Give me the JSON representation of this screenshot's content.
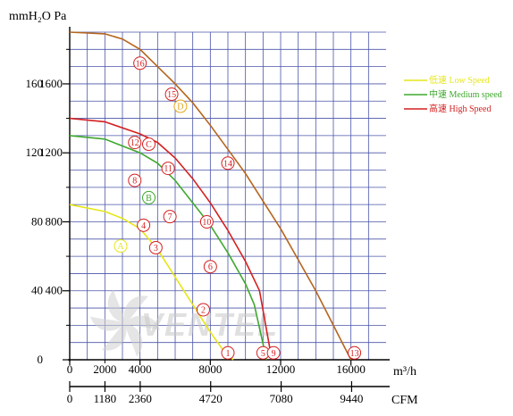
{
  "chart_data": {
    "type": "line",
    "title": "",
    "y_units_label": "mmH₂O  Pa",
    "x_units_label": "m³/h",
    "x2_units_label": "CFM",
    "ylim_mmH2O": [
      0,
      190
    ],
    "xlim_m3h": [
      0,
      18000
    ],
    "grid": true,
    "legend_position": "right",
    "y_ticks": [
      {
        "mmH2O": 0,
        "label_mm": "0",
        "label_pa": ""
      },
      {
        "mmH2O": 40,
        "label_mm": "40",
        "label_pa": "400"
      },
      {
        "mmH2O": 80,
        "label_mm": "80",
        "label_pa": "800"
      },
      {
        "mmH2O": 120,
        "label_mm": "120",
        "label_pa": "1200"
      },
      {
        "mmH2O": 160,
        "label_mm": "160",
        "label_pa": "1600"
      }
    ],
    "x_ticks": [
      {
        "m3h": 0,
        "label": "0"
      },
      {
        "m3h": 4000,
        "label": "4000"
      },
      {
        "m3h": 8000,
        "label": "8000"
      },
      {
        "m3h": 12000,
        "label": "12000"
      },
      {
        "m3h": 16000,
        "label": "16000"
      }
    ],
    "x_minor_labels": [
      {
        "m3h": 2000,
        "label": "2000"
      }
    ],
    "x2_ticks": [
      {
        "m3h": 0,
        "label": "0"
      },
      {
        "m3h": 2005,
        "label": "1180"
      },
      {
        "m3h": 4010,
        "label": "2360"
      },
      {
        "m3h": 8020,
        "label": "4720"
      },
      {
        "m3h": 12029,
        "label": "7080"
      },
      {
        "m3h": 16039,
        "label": "9440"
      }
    ],
    "series": [
      {
        "name": "低速 Low Speed",
        "color": "#e6e619",
        "x": [
          0,
          2000,
          3000,
          4000,
          5000,
          6000,
          7000,
          8000,
          8700,
          9300
        ],
        "y": [
          90,
          86,
          82,
          76,
          64,
          48,
          32,
          16,
          6,
          0
        ]
      },
      {
        "name": "中速 Medium speed",
        "color": "#3fa82e",
        "x": [
          0,
          2000,
          4000,
          5000,
          6000,
          7000,
          8000,
          9000,
          10000,
          10500,
          11200
        ],
        "y": [
          130,
          128,
          120,
          114,
          104,
          91,
          78,
          62,
          44,
          32,
          0
        ]
      },
      {
        "name": "高速 High Speed",
        "color": "#d42020",
        "x": [
          0,
          2000,
          4000,
          5000,
          6000,
          7000,
          8000,
          9000,
          10000,
          10800,
          11500
        ],
        "y": [
          140,
          138,
          131,
          126,
          117,
          105,
          91,
          75,
          57,
          40,
          0
        ]
      },
      {
        "name": "",
        "color": "#b5651d",
        "x": [
          0,
          2000,
          3000,
          4000,
          5000,
          6000,
          7000,
          8000,
          9000,
          10000,
          11000,
          12000,
          13000,
          14000,
          15000,
          16000
        ],
        "y": [
          190,
          189,
          186,
          180,
          170,
          160,
          149,
          136,
          122,
          108,
          92,
          76,
          58,
          40,
          20,
          0
        ]
      }
    ],
    "point_markers": [
      {
        "label": "16",
        "x": 4000,
        "y": 172,
        "color": "#d42020"
      },
      {
        "label": "15",
        "x": 5800,
        "y": 154,
        "color": "#d42020"
      },
      {
        "label": "D",
        "x": 6300,
        "y": 147,
        "color": "#e6a519"
      },
      {
        "label": "14",
        "x": 9000,
        "y": 114,
        "color": "#d42020"
      },
      {
        "label": "12",
        "x": 3700,
        "y": 126,
        "color": "#d42020"
      },
      {
        "label": "C",
        "x": 4500,
        "y": 125,
        "color": "#d42020"
      },
      {
        "label": "11",
        "x": 5600,
        "y": 111,
        "color": "#d42020"
      },
      {
        "label": "8",
        "x": 3700,
        "y": 104,
        "color": "#d42020"
      },
      {
        "label": "B",
        "x": 4500,
        "y": 94,
        "color": "#3fa82e"
      },
      {
        "label": "7",
        "x": 5700,
        "y": 83,
        "color": "#d42020"
      },
      {
        "label": "10",
        "x": 7800,
        "y": 80,
        "color": "#d42020"
      },
      {
        "label": "4",
        "x": 4200,
        "y": 78,
        "color": "#d42020"
      },
      {
        "label": "A",
        "x": 2900,
        "y": 66,
        "color": "#e6e619"
      },
      {
        "label": "3",
        "x": 4900,
        "y": 65,
        "color": "#d42020"
      },
      {
        "label": "6",
        "x": 8000,
        "y": 54,
        "color": "#d42020"
      },
      {
        "label": "2",
        "x": 7600,
        "y": 29,
        "color": "#d42020"
      },
      {
        "label": "1",
        "x": 9000,
        "y": 4,
        "color": "#d42020"
      },
      {
        "label": "5",
        "x": 11000,
        "y": 4,
        "color": "#d42020"
      },
      {
        "label": "9",
        "x": 11600,
        "y": 4,
        "color": "#d42020"
      },
      {
        "label": "13",
        "x": 16200,
        "y": 4,
        "color": "#d42020"
      }
    ],
    "watermark": "VENTEL"
  }
}
